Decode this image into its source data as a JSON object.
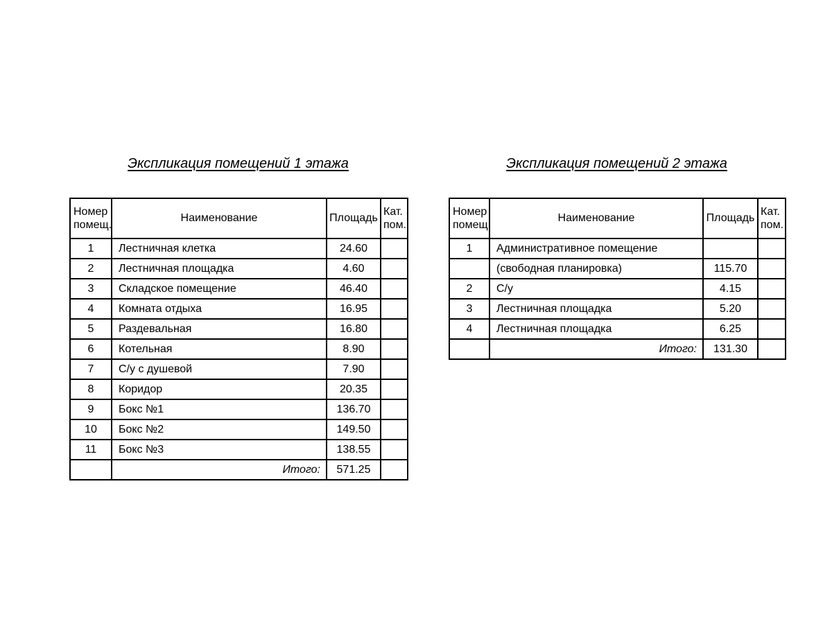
{
  "page": {
    "background_color": "#ffffff",
    "text_color": "#000000",
    "line_color": "#000000"
  },
  "tables": [
    {
      "title": "Экспликация помещений 1 этажа",
      "headers": {
        "num_lines": [
          "Номер",
          "помещ."
        ],
        "name": "Наименование",
        "area": "Площадь",
        "cat_lines": [
          "Кат.",
          "пом."
        ]
      },
      "rows": [
        {
          "num": "1",
          "name": "Лестничная клетка",
          "area": "24.60",
          "cat": ""
        },
        {
          "num": "2",
          "name": "Лестничная площадка",
          "area": "4.60",
          "cat": ""
        },
        {
          "num": "3",
          "name": "Складское помещение",
          "area": "46.40",
          "cat": ""
        },
        {
          "num": "4",
          "name": "Комната отдыха",
          "area": "16.95",
          "cat": ""
        },
        {
          "num": "5",
          "name": "Раздевальная",
          "area": "16.80",
          "cat": ""
        },
        {
          "num": "6",
          "name": "Котельная",
          "area": "8.90",
          "cat": ""
        },
        {
          "num": "7",
          "name": "С/у с душевой",
          "area": "7.90",
          "cat": ""
        },
        {
          "num": "8",
          "name": "Коридор",
          "area": "20.35",
          "cat": ""
        },
        {
          "num": "9",
          "name": "Бокс №1",
          "area": "136.70",
          "cat": ""
        },
        {
          "num": "10",
          "name": "Бокс №2",
          "area": "149.50",
          "cat": ""
        },
        {
          "num": "11",
          "name": "Бокс №3",
          "area": "138.55",
          "cat": ""
        }
      ],
      "total": {
        "label": "Итого:",
        "value": "571.25"
      }
    },
    {
      "title": "Экспликация помещений 2 этажа",
      "headers": {
        "num_lines": [
          "Номер",
          "помещ."
        ],
        "name": "Наименование",
        "area": "Площадь",
        "cat_lines": [
          "Кат.",
          "пом."
        ]
      },
      "rows": [
        {
          "num": "1",
          "name": "Административное помещение",
          "area": "",
          "cat": ""
        },
        {
          "num": "",
          "name": "(свободная планировка)",
          "area": "115.70",
          "cat": ""
        },
        {
          "num": "2",
          "name": "С/у",
          "area": "4.15",
          "cat": ""
        },
        {
          "num": "3",
          "name": "Лестничная площадка",
          "area": "5.20",
          "cat": ""
        },
        {
          "num": "4",
          "name": "Лестничная площадка",
          "area": "6.25",
          "cat": ""
        }
      ],
      "total": {
        "label": "Итого:",
        "value": "131.30"
      }
    }
  ]
}
